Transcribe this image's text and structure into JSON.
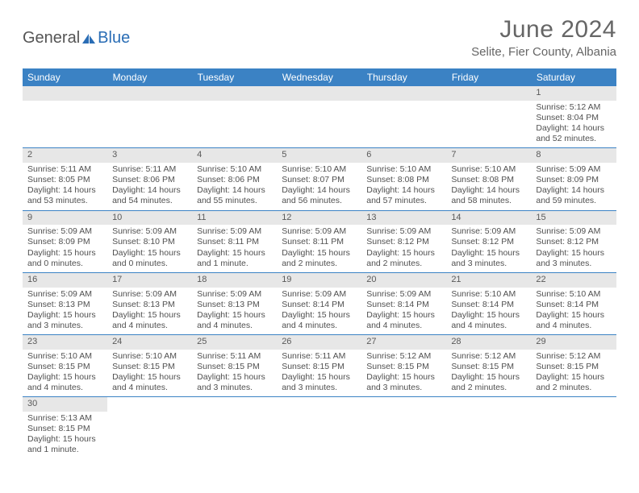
{
  "logo": {
    "part1": "General",
    "part2": "Blue"
  },
  "header": {
    "title": "June 2024",
    "location": "Selite, Fier County, Albania"
  },
  "weekdays": [
    "Sunday",
    "Monday",
    "Tuesday",
    "Wednesday",
    "Thursday",
    "Friday",
    "Saturday"
  ],
  "colors": {
    "header_bg": "#3b82c4",
    "daynum_bg": "#e7e7e7",
    "cell_border": "#3b82c4",
    "logo_blue": "#2a6db5"
  },
  "weeks": [
    [
      null,
      null,
      null,
      null,
      null,
      null,
      {
        "n": "1",
        "sr": "Sunrise: 5:12 AM",
        "ss": "Sunset: 8:04 PM",
        "dl1": "Daylight: 14 hours",
        "dl2": "and 52 minutes."
      }
    ],
    [
      {
        "n": "2",
        "sr": "Sunrise: 5:11 AM",
        "ss": "Sunset: 8:05 PM",
        "dl1": "Daylight: 14 hours",
        "dl2": "and 53 minutes."
      },
      {
        "n": "3",
        "sr": "Sunrise: 5:11 AM",
        "ss": "Sunset: 8:06 PM",
        "dl1": "Daylight: 14 hours",
        "dl2": "and 54 minutes."
      },
      {
        "n": "4",
        "sr": "Sunrise: 5:10 AM",
        "ss": "Sunset: 8:06 PM",
        "dl1": "Daylight: 14 hours",
        "dl2": "and 55 minutes."
      },
      {
        "n": "5",
        "sr": "Sunrise: 5:10 AM",
        "ss": "Sunset: 8:07 PM",
        "dl1": "Daylight: 14 hours",
        "dl2": "and 56 minutes."
      },
      {
        "n": "6",
        "sr": "Sunrise: 5:10 AM",
        "ss": "Sunset: 8:08 PM",
        "dl1": "Daylight: 14 hours",
        "dl2": "and 57 minutes."
      },
      {
        "n": "7",
        "sr": "Sunrise: 5:10 AM",
        "ss": "Sunset: 8:08 PM",
        "dl1": "Daylight: 14 hours",
        "dl2": "and 58 minutes."
      },
      {
        "n": "8",
        "sr": "Sunrise: 5:09 AM",
        "ss": "Sunset: 8:09 PM",
        "dl1": "Daylight: 14 hours",
        "dl2": "and 59 minutes."
      }
    ],
    [
      {
        "n": "9",
        "sr": "Sunrise: 5:09 AM",
        "ss": "Sunset: 8:09 PM",
        "dl1": "Daylight: 15 hours",
        "dl2": "and 0 minutes."
      },
      {
        "n": "10",
        "sr": "Sunrise: 5:09 AM",
        "ss": "Sunset: 8:10 PM",
        "dl1": "Daylight: 15 hours",
        "dl2": "and 0 minutes."
      },
      {
        "n": "11",
        "sr": "Sunrise: 5:09 AM",
        "ss": "Sunset: 8:11 PM",
        "dl1": "Daylight: 15 hours",
        "dl2": "and 1 minute."
      },
      {
        "n": "12",
        "sr": "Sunrise: 5:09 AM",
        "ss": "Sunset: 8:11 PM",
        "dl1": "Daylight: 15 hours",
        "dl2": "and 2 minutes."
      },
      {
        "n": "13",
        "sr": "Sunrise: 5:09 AM",
        "ss": "Sunset: 8:12 PM",
        "dl1": "Daylight: 15 hours",
        "dl2": "and 2 minutes."
      },
      {
        "n": "14",
        "sr": "Sunrise: 5:09 AM",
        "ss": "Sunset: 8:12 PM",
        "dl1": "Daylight: 15 hours",
        "dl2": "and 3 minutes."
      },
      {
        "n": "15",
        "sr": "Sunrise: 5:09 AM",
        "ss": "Sunset: 8:12 PM",
        "dl1": "Daylight: 15 hours",
        "dl2": "and 3 minutes."
      }
    ],
    [
      {
        "n": "16",
        "sr": "Sunrise: 5:09 AM",
        "ss": "Sunset: 8:13 PM",
        "dl1": "Daylight: 15 hours",
        "dl2": "and 3 minutes."
      },
      {
        "n": "17",
        "sr": "Sunrise: 5:09 AM",
        "ss": "Sunset: 8:13 PM",
        "dl1": "Daylight: 15 hours",
        "dl2": "and 4 minutes."
      },
      {
        "n": "18",
        "sr": "Sunrise: 5:09 AM",
        "ss": "Sunset: 8:13 PM",
        "dl1": "Daylight: 15 hours",
        "dl2": "and 4 minutes."
      },
      {
        "n": "19",
        "sr": "Sunrise: 5:09 AM",
        "ss": "Sunset: 8:14 PM",
        "dl1": "Daylight: 15 hours",
        "dl2": "and 4 minutes."
      },
      {
        "n": "20",
        "sr": "Sunrise: 5:09 AM",
        "ss": "Sunset: 8:14 PM",
        "dl1": "Daylight: 15 hours",
        "dl2": "and 4 minutes."
      },
      {
        "n": "21",
        "sr": "Sunrise: 5:10 AM",
        "ss": "Sunset: 8:14 PM",
        "dl1": "Daylight: 15 hours",
        "dl2": "and 4 minutes."
      },
      {
        "n": "22",
        "sr": "Sunrise: 5:10 AM",
        "ss": "Sunset: 8:14 PM",
        "dl1": "Daylight: 15 hours",
        "dl2": "and 4 minutes."
      }
    ],
    [
      {
        "n": "23",
        "sr": "Sunrise: 5:10 AM",
        "ss": "Sunset: 8:15 PM",
        "dl1": "Daylight: 15 hours",
        "dl2": "and 4 minutes."
      },
      {
        "n": "24",
        "sr": "Sunrise: 5:10 AM",
        "ss": "Sunset: 8:15 PM",
        "dl1": "Daylight: 15 hours",
        "dl2": "and 4 minutes."
      },
      {
        "n": "25",
        "sr": "Sunrise: 5:11 AM",
        "ss": "Sunset: 8:15 PM",
        "dl1": "Daylight: 15 hours",
        "dl2": "and 3 minutes."
      },
      {
        "n": "26",
        "sr": "Sunrise: 5:11 AM",
        "ss": "Sunset: 8:15 PM",
        "dl1": "Daylight: 15 hours",
        "dl2": "and 3 minutes."
      },
      {
        "n": "27",
        "sr": "Sunrise: 5:12 AM",
        "ss": "Sunset: 8:15 PM",
        "dl1": "Daylight: 15 hours",
        "dl2": "and 3 minutes."
      },
      {
        "n": "28",
        "sr": "Sunrise: 5:12 AM",
        "ss": "Sunset: 8:15 PM",
        "dl1": "Daylight: 15 hours",
        "dl2": "and 2 minutes."
      },
      {
        "n": "29",
        "sr": "Sunrise: 5:12 AM",
        "ss": "Sunset: 8:15 PM",
        "dl1": "Daylight: 15 hours",
        "dl2": "and 2 minutes."
      }
    ],
    [
      {
        "n": "30",
        "sr": "Sunrise: 5:13 AM",
        "ss": "Sunset: 8:15 PM",
        "dl1": "Daylight: 15 hours",
        "dl2": "and 1 minute."
      },
      null,
      null,
      null,
      null,
      null,
      null
    ]
  ]
}
